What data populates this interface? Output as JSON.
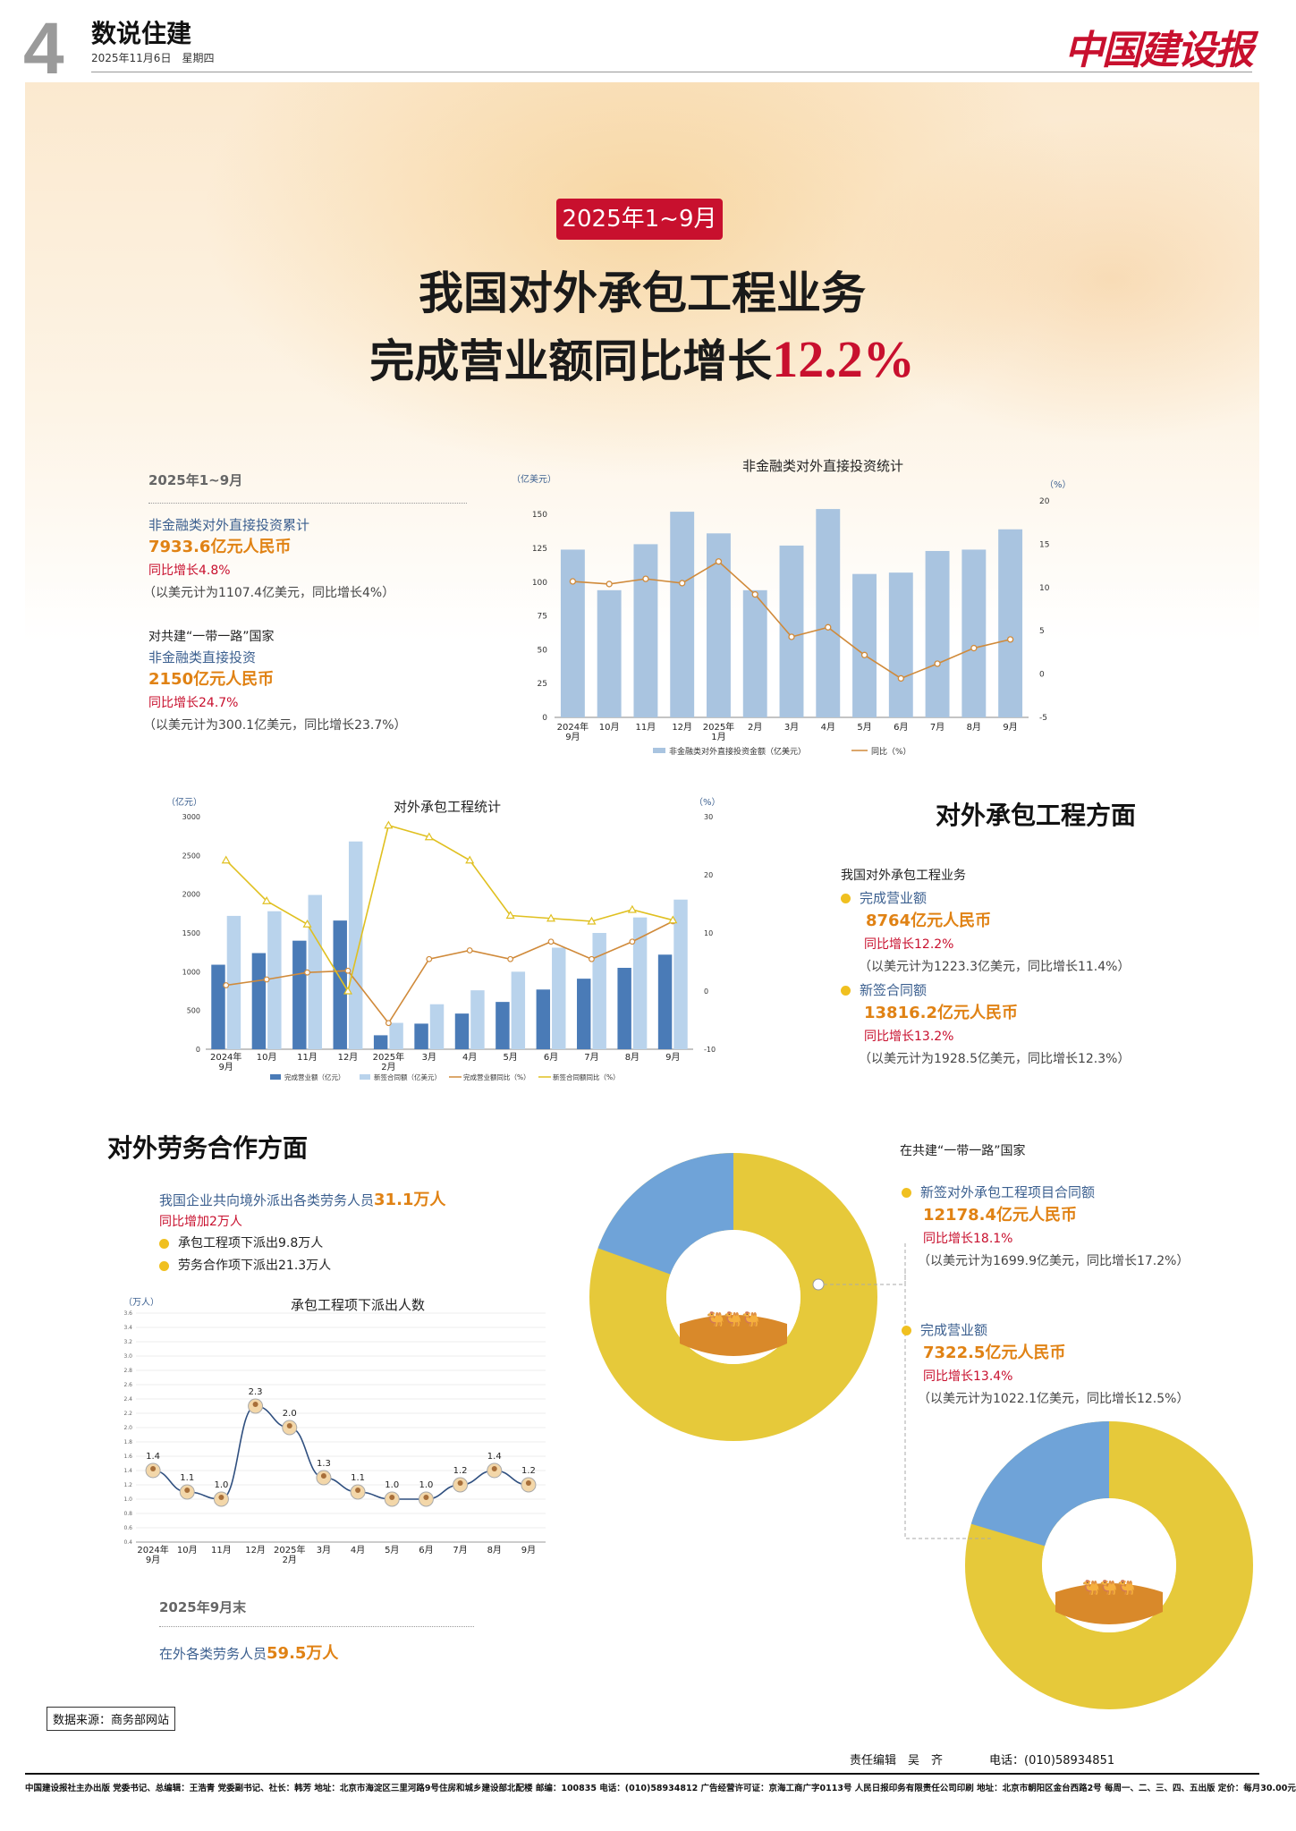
{
  "header": {
    "page_no": "4",
    "section": "数说住建",
    "date": "2025年11月6日　星期四",
    "brand": "中国建设报"
  },
  "poster": {
    "period_badge": "2025年1~9月",
    "headline_line1": "我国对外承包工程业务",
    "headline_line2_text": "完成营业额同比增长",
    "headline_line2_highlight": "12.2%"
  },
  "investment": {
    "period": "2025年1~9月",
    "item1_label": "非金融类对外直接投资累计",
    "item1_value": "7933.6亿元人民币",
    "item1_growth": "同比增长4.8%",
    "item1_usd": "（以美元计为1107.4亿美元，同比增长4%）",
    "br_label": "对共建“一带一路”国家",
    "br_sub": "非金融类直接投资",
    "br_value": "2150亿元人民币",
    "br_growth": "同比增长24.7%",
    "br_usd": "（以美元计为300.1亿美元，同比增长23.7%）"
  },
  "contract": {
    "title": "对外承包工程方面",
    "intro": "我国对外承包工程业务",
    "rev_label": "完成营业额",
    "rev_value": "8764亿元人民币",
    "rev_growth": "同比增长12.2%",
    "rev_usd": "（以美元计为1223.3亿美元，同比增长11.4%）",
    "new_label": "新签合同额",
    "new_value": "13816.2亿元人民币",
    "new_growth": "同比增长13.2%",
    "new_usd": "（以美元计为1928.5亿美元，同比增长12.3%）"
  },
  "labor": {
    "title": "对外劳务合作方面",
    "intro_text": "我国企业共向境外派出各类劳务人员",
    "intro_value": "31.1万人",
    "growth": "同比增加2万人",
    "item1": "承包工程项下派出9.8万人",
    "item2": "劳务合作项下派出21.3万人",
    "end_period": "2025年9月末",
    "end_text": "在外各类劳务人员",
    "end_value": "59.5万人"
  },
  "belt_road": {
    "title": "在共建“一带一路”国家",
    "new_label": "新签对外承包工程项目合同额",
    "new_value": "12178.4亿元人民币",
    "new_growth": "同比增长18.1%",
    "new_usd": "（以美元计为1699.9亿美元，同比增长17.2%）",
    "rev_label": "完成营业额",
    "rev_value": "7322.5亿元人民币",
    "rev_growth": "同比增长13.4%",
    "rev_usd": "（以美元计为1022.1亿美元，同比增长12.5%）"
  },
  "footer": {
    "source": "数据来源：商务部网站",
    "editor": "责任编辑　吴　齐　　　　电话：(010)58934851",
    "info": "中国建设报社主办出版 党委书记、总编辑：王浩青 党委副书记、社长：韩芳 地址：北京市海淀区三里河路9号住房和城乡建设部北配楼 邮编：100835 电话：(010)58934812 广告经营许可证：京海工商广字0113号 人民日报印务有限责任公司印刷 地址：北京市朝阳区金台西路2号 每周一、二、三、四、五出版 定价：每月30.00元"
  },
  "colors": {
    "accent_red": "#c8102e",
    "bar_blue": "#a9c4e0",
    "dark_blue": "#4a7bb7",
    "light_blue": "#b9d3ec",
    "line_orange": "#d08a3a",
    "line_yellow": "#e0c020",
    "donut_yellow": "#e6c93a",
    "donut_blue": "#6fa3d8"
  },
  "chart_data": [
    {
      "type": "bar",
      "title": "非金融类对外直接投资统计",
      "ylabel": "（亿美元）",
      "y2label": "（%）",
      "categories": [
        "2024年9月",
        "10月",
        "11月",
        "12月",
        "2025年1月",
        "2月",
        "3月",
        "4月",
        "5月",
        "6月",
        "7月",
        "8月",
        "9月"
      ],
      "ylim": [
        0,
        160
      ],
      "y2lim": [
        -5,
        20
      ],
      "yticks": [
        0,
        25,
        50,
        75,
        100,
        125,
        150
      ],
      "y2ticks": [
        -5,
        0,
        5,
        10,
        15,
        20
      ],
      "series": [
        {
          "name": "非金融类对外直接投资金额（亿美元）",
          "type": "bar",
          "values": [
            124,
            94,
            128,
            152,
            136,
            94,
            127,
            154,
            106,
            107,
            123,
            124,
            139
          ]
        },
        {
          "name": "同比（%）",
          "type": "line",
          "axis": "right",
          "values": [
            10.7,
            10.4,
            11,
            10.5,
            13,
            9.2,
            4.3,
            5.4,
            2.2,
            -0.5,
            1.2,
            3,
            4
          ]
        }
      ]
    },
    {
      "type": "bar",
      "title": "对外承包工程统计",
      "ylabel": "（亿元）",
      "y2label": "（%）",
      "categories": [
        "2024年9月",
        "10月",
        "11月",
        "12月",
        "2025年2月",
        "3月",
        "4月",
        "5月",
        "6月",
        "7月",
        "8月",
        "9月"
      ],
      "ylim": [
        0,
        3000
      ],
      "y2lim": [
        -10,
        30
      ],
      "yticks": [
        0,
        500,
        1000,
        1500,
        2000,
        2500,
        3000
      ],
      "y2ticks": [
        -10,
        0,
        10,
        20,
        30
      ],
      "series": [
        {
          "name": "完成营业额（亿元）",
          "type": "bar",
          "values": [
            1090,
            1240,
            1400,
            1660,
            180,
            330,
            460,
            610,
            770,
            910,
            1050,
            1220
          ]
        },
        {
          "name": "新签合同额（亿美元）",
          "type": "bar",
          "values": [
            1720,
            1780,
            1990,
            2680,
            340,
            580,
            760,
            1000,
            1310,
            1500,
            1700,
            1930
          ]
        },
        {
          "name": "完成营业额同比（%）",
          "type": "line",
          "axis": "right",
          "values": [
            1,
            2,
            3.2,
            3.5,
            -5.5,
            5.5,
            7,
            5.5,
            8.5,
            5.5,
            8.5,
            12
          ]
        },
        {
          "name": "新签合同额同比（%）",
          "type": "line",
          "axis": "right",
          "values": [
            22.5,
            15.5,
            11.5,
            0,
            28.5,
            26.5,
            22.5,
            13,
            12.5,
            12,
            14,
            12.2
          ]
        }
      ]
    },
    {
      "type": "line",
      "title": "承包工程项下派出人数",
      "ylabel": "（万人）",
      "categories": [
        "2024年9月",
        "10月",
        "11月",
        "12月",
        "2025年2月",
        "3月",
        "4月",
        "5月",
        "6月",
        "7月",
        "8月",
        "9月"
      ],
      "ylim": [
        0.4,
        3.6
      ],
      "yticks": [
        0.4,
        0.6,
        0.8,
        1.0,
        1.2,
        1.4,
        1.6,
        1.8,
        2.0,
        2.2,
        2.4,
        2.6,
        2.8,
        3.0,
        3.2,
        3.4,
        3.6
      ],
      "values": [
        1.4,
        1.1,
        1.0,
        2.3,
        2.0,
        1.3,
        1.1,
        1.0,
        1.0,
        1.2,
        1.4,
        1.2
      ],
      "data_labels": [
        "1.4",
        "1.1",
        "1.0",
        "2.3",
        "2.0",
        "1.3",
        "1.1",
        "1.0",
        "1.0",
        "1.2",
        "1.4",
        "1.2"
      ]
    }
  ]
}
